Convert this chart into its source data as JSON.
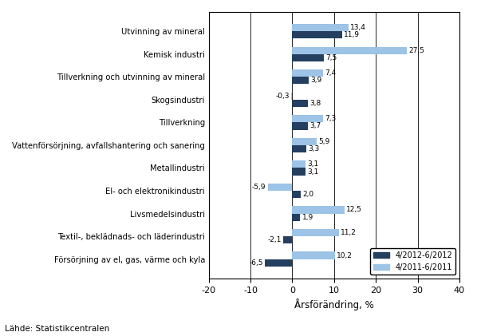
{
  "categories": [
    "Utvinning av mineral",
    "Kemisk industri",
    "Tillverkning och utvinning av mineral",
    "Skogsindustri",
    "Tillverkning",
    "Vattenförsörjning, avfallshantering och sanering",
    "Metallindustri",
    "El- och elektronikindustri",
    "Livsmedelsindustri",
    "Textil-, beklädnads- och läderindustri",
    "Försörjning av el, gas, värme och kyla"
  ],
  "series1_values": [
    11.9,
    7.5,
    3.9,
    3.8,
    3.7,
    3.3,
    3.1,
    2.0,
    1.9,
    -2.1,
    -6.5
  ],
  "series2_values": [
    13.4,
    27.5,
    7.4,
    -0.3,
    7.3,
    5.9,
    3.1,
    -5.9,
    12.5,
    11.2,
    10.2
  ],
  "series1_labels": [
    "11,9",
    "7,5",
    "3,9",
    "3,8",
    "3,7",
    "3,3",
    "3,1",
    "2,0",
    "1,9",
    "-2,1",
    "-6,5"
  ],
  "series2_labels": [
    "13,4",
    "27,5",
    "7,4",
    "-0,3",
    "7,3",
    "5,9",
    "3,1",
    "-5,9",
    "12,5",
    "11,2",
    "10,2"
  ],
  "series1_color": "#243F60",
  "series2_color": "#9DC3E6",
  "series1_label": "4/2012-6/2012",
  "series2_label": "4/2011-6/2011",
  "xlabel": "Årsförändring, %",
  "xlim": [
    -20,
    40
  ],
  "xticks": [
    -20,
    -10,
    0,
    10,
    20,
    30,
    40
  ],
  "footnote": "Lähde: Statistikcentralen",
  "bar_height": 0.32
}
